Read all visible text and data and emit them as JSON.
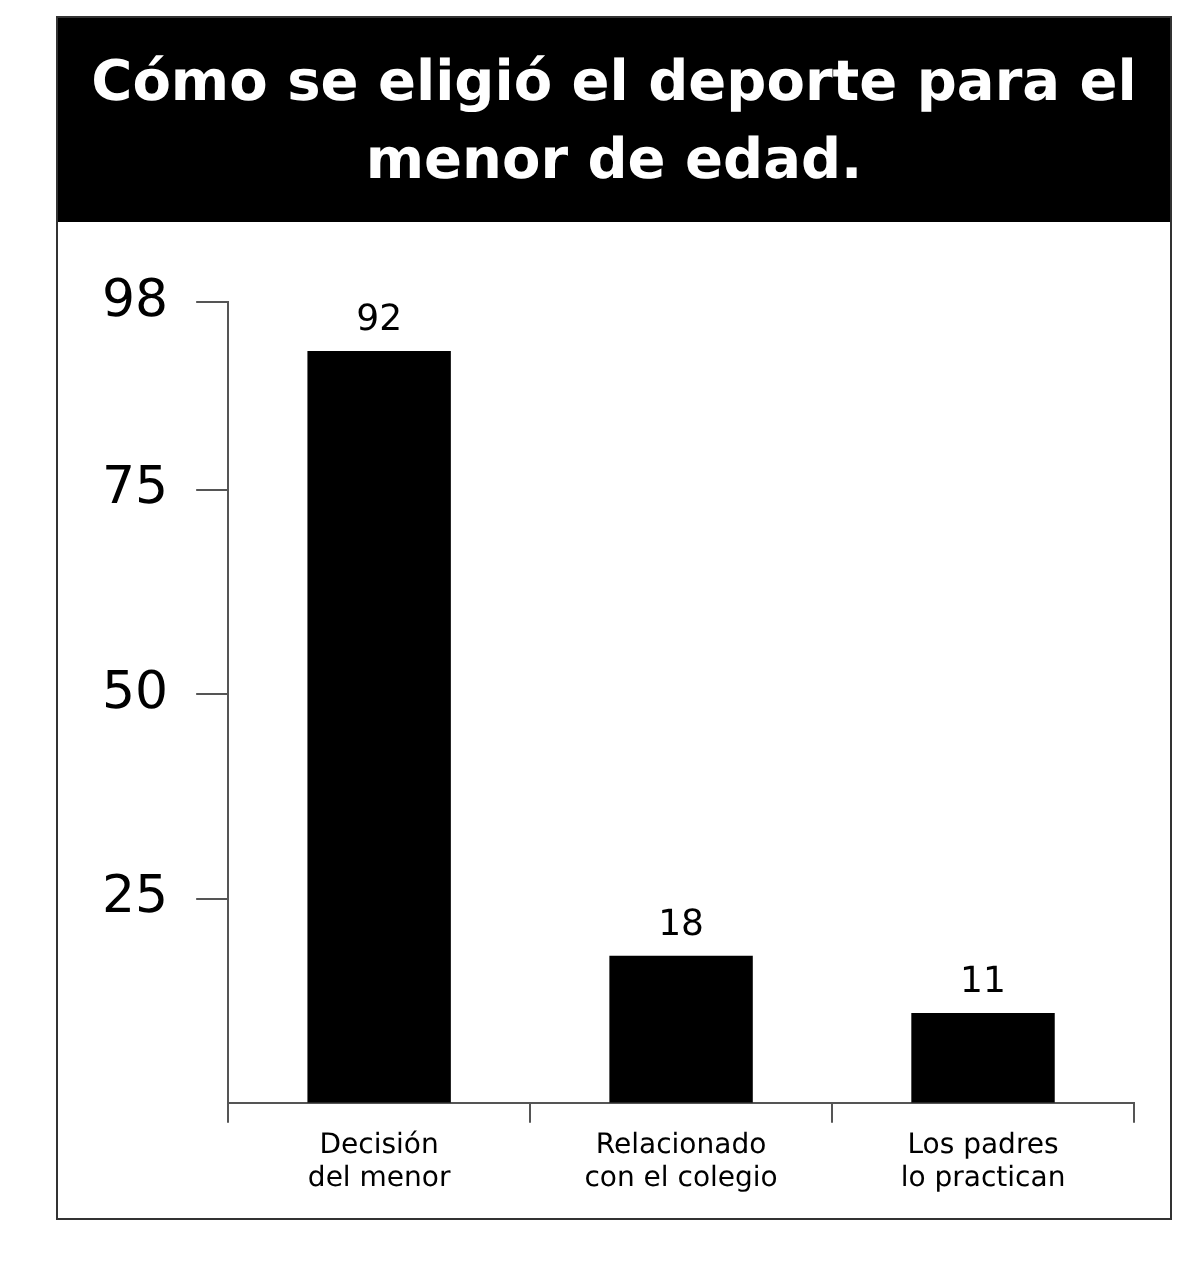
{
  "chart_data": {
    "type": "bar",
    "title": "Cómo se eligió el deporte para el menor de edad.",
    "categories": [
      "Decisión del menor",
      "Relacionado con el colegio",
      "Los padres lo practican"
    ],
    "values": [
      92,
      18,
      11
    ],
    "color": "#000000",
    "ylim": [
      0,
      98
    ],
    "yticks": [
      25,
      50,
      75,
      98
    ],
    "grid": false,
    "legend": false,
    "data_labels": true
  }
}
